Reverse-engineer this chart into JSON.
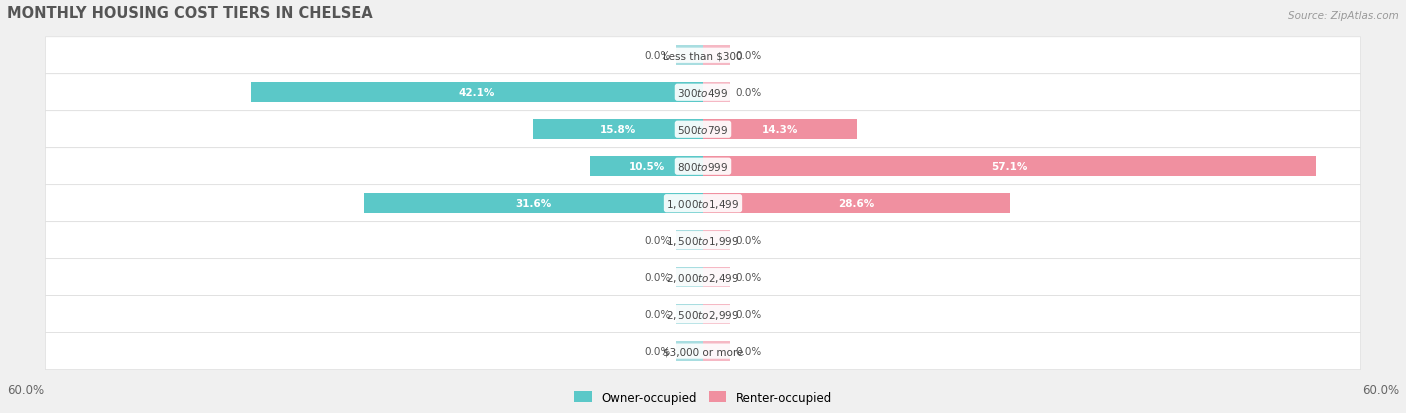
{
  "title": "MONTHLY HOUSING COST TIERS IN CHELSEA",
  "source": "Source: ZipAtlas.com",
  "categories": [
    "Less than $300",
    "$300 to $499",
    "$500 to $799",
    "$800 to $999",
    "$1,000 to $1,499",
    "$1,500 to $1,999",
    "$2,000 to $2,499",
    "$2,500 to $2,999",
    "$3,000 or more"
  ],
  "owner_values": [
    0.0,
    42.1,
    15.8,
    10.5,
    31.6,
    0.0,
    0.0,
    0.0,
    0.0
  ],
  "renter_values": [
    0.0,
    0.0,
    14.3,
    57.1,
    28.6,
    0.0,
    0.0,
    0.0,
    0.0
  ],
  "owner_color": "#5BC8C8",
  "renter_color": "#F090A0",
  "owner_color_zero": "#A8DDE0",
  "renter_color_zero": "#F5B8C4",
  "axis_max": 60.0,
  "axis_label_left": "60.0%",
  "axis_label_right": "60.0%",
  "bg_color": "#f0f0f0",
  "bar_bg_color": "#ffffff",
  "label_color_inside": "#ffffff",
  "label_color_outside": "#555555",
  "title_color": "#555555",
  "source_color": "#999999"
}
